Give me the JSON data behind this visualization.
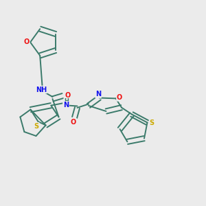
{
  "bg_color": "#ebebeb",
  "bond_color": "#3a7a6a",
  "atom_colors": {
    "O": "#ee1111",
    "N": "#1111ee",
    "S": "#ccaa00",
    "H": "#3a7a6a",
    "C": "#3a7a6a"
  },
  "font_size": 7.0,
  "bond_width": 1.4,
  "dbo": 0.012
}
